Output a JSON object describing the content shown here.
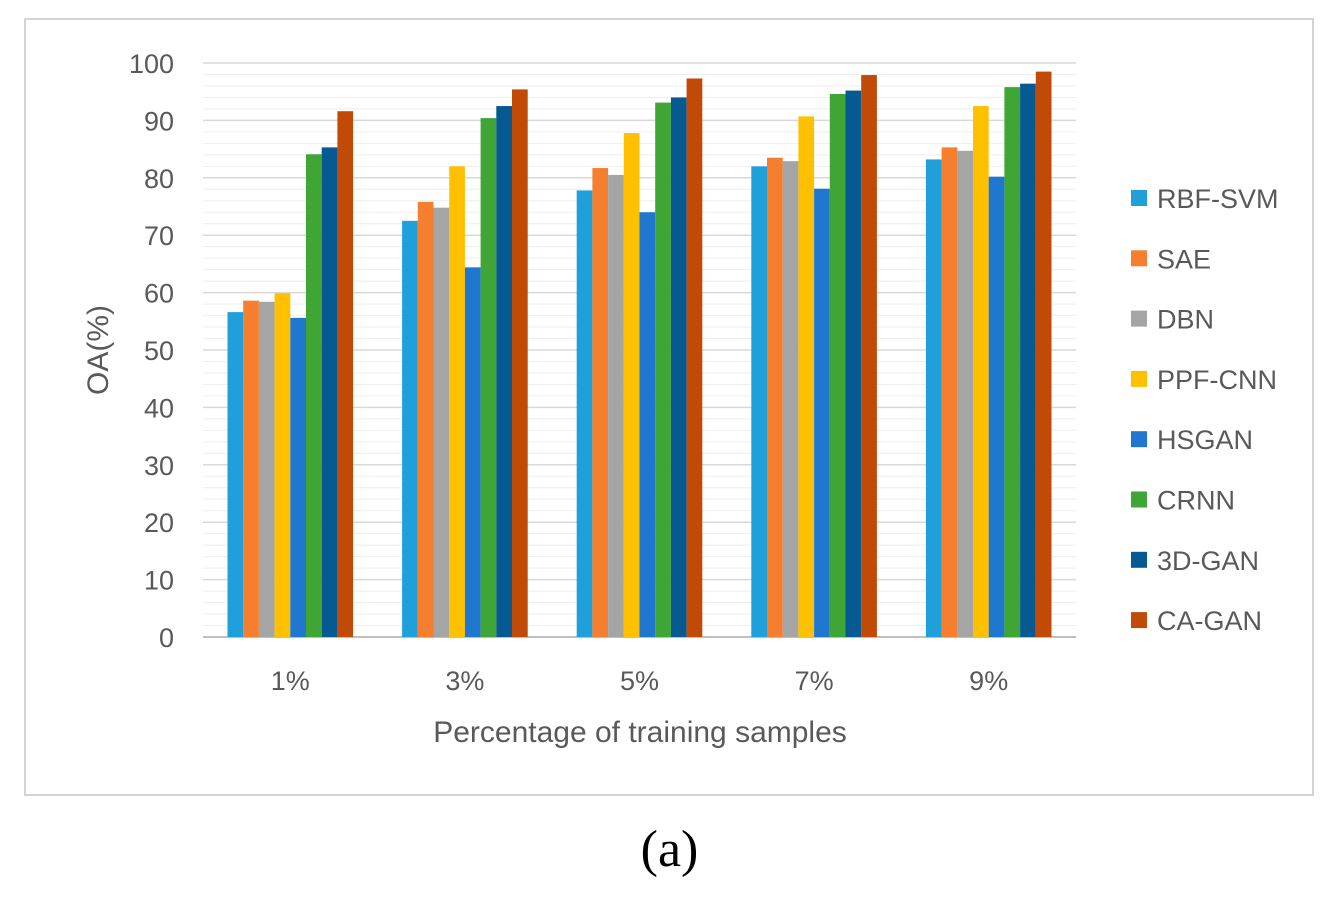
{
  "chart_data": {
    "type": "bar",
    "title": "",
    "xlabel": "Percentage of  training samples",
    "ylabel": "OA(%)",
    "ylim": [
      0,
      100
    ],
    "yticks": [
      0,
      10,
      20,
      30,
      40,
      50,
      60,
      70,
      80,
      90,
      100
    ],
    "grid": true,
    "legend_position": "right",
    "categories": [
      "1%",
      "3%",
      "5%",
      "7%",
      "9%"
    ],
    "series": [
      {
        "name": "RBF-SVM",
        "color": "#1fa0db",
        "values": [
          56.6,
          72.5,
          77.8,
          82.0,
          83.2
        ]
      },
      {
        "name": "SAE",
        "color": "#f57e2f",
        "values": [
          58.6,
          75.8,
          81.7,
          83.5,
          85.3
        ]
      },
      {
        "name": "DBN",
        "color": "#a5a5a5",
        "values": [
          58.4,
          74.8,
          80.5,
          82.9,
          84.7
        ]
      },
      {
        "name": "PPF-CNN",
        "color": "#ffc000",
        "values": [
          59.9,
          82.0,
          87.8,
          90.7,
          92.5
        ]
      },
      {
        "name": "HSGAN",
        "color": "#1f77d0",
        "values": [
          55.6,
          64.4,
          74.0,
          78.1,
          80.2
        ]
      },
      {
        "name": "CRNN",
        "color": "#3fa535",
        "values": [
          84.1,
          90.4,
          93.1,
          94.6,
          95.8
        ]
      },
      {
        "name": "3D-GAN",
        "color": "#065a91",
        "values": [
          85.3,
          92.5,
          94.0,
          95.2,
          96.4
        ]
      },
      {
        "name": "CA-GAN",
        "color": "#c04a06",
        "values": [
          91.6,
          95.4,
          97.3,
          97.9,
          98.5
        ]
      }
    ]
  },
  "caption": "(a)"
}
